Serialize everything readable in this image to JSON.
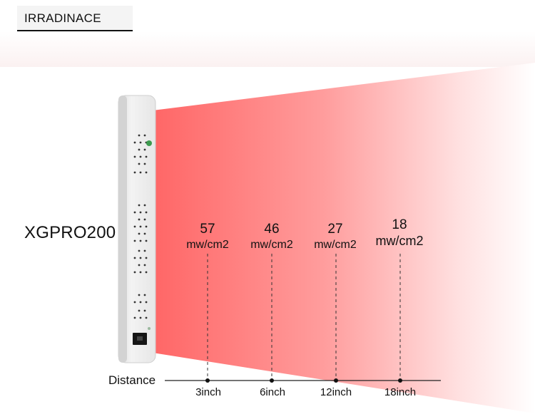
{
  "header": {
    "title": "IRRADINACE"
  },
  "device": {
    "model": "XGPRO200"
  },
  "readings": [
    {
      "value": "57",
      "unit": "mw/cm2"
    },
    {
      "value": "46",
      "unit": "mw/cm2"
    },
    {
      "value": "27",
      "unit": "mw/cm2"
    },
    {
      "value": "18",
      "unit": "mw/cm2"
    }
  ],
  "axis": {
    "label": "Distance",
    "ticks": [
      "3inch",
      "6inch",
      "12inch",
      "18inch"
    ]
  },
  "colors": {
    "beam": "#ff6b6b",
    "accent_led": "#3c9a4e"
  }
}
